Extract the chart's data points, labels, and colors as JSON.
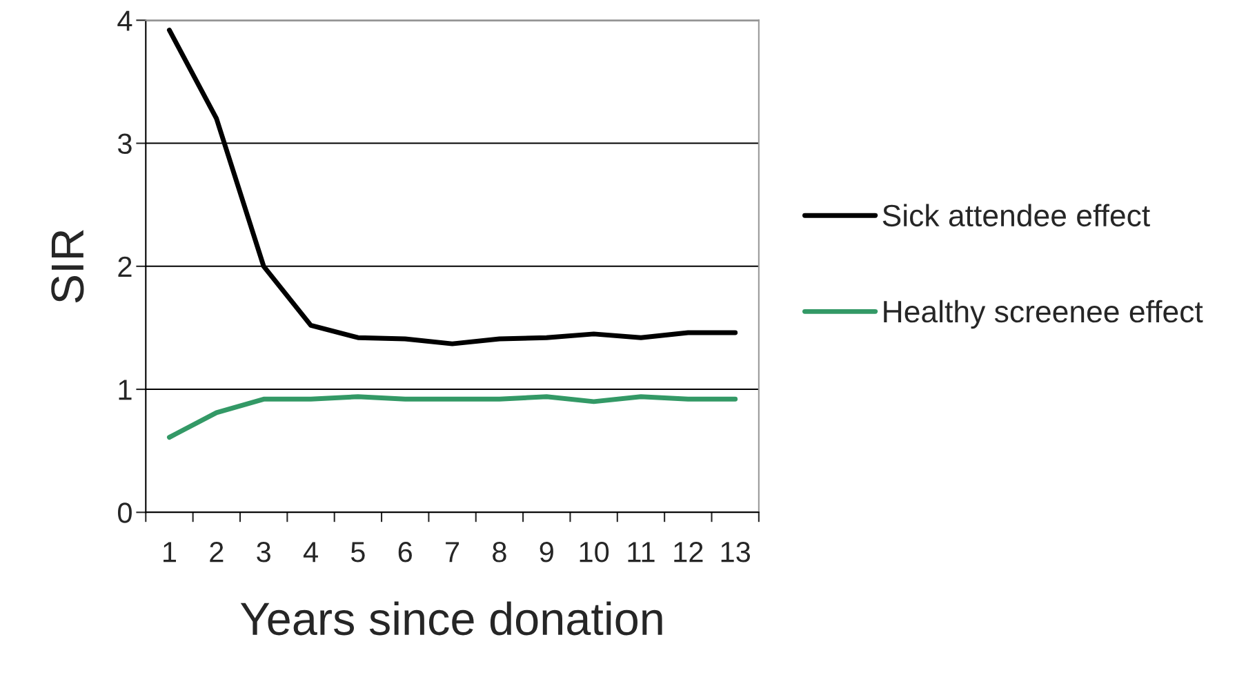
{
  "chart_data": {
    "type": "line",
    "xlabel": "Years since donation",
    "ylabel": "SIR",
    "categories": [
      "1",
      "2",
      "3",
      "4",
      "5",
      "6",
      "7",
      "8",
      "9",
      "10",
      "11",
      "12",
      "13"
    ],
    "series": [
      {
        "name": "Sick attendee effect",
        "color": "#000000",
        "values": [
          3.92,
          3.2,
          2.0,
          1.52,
          1.42,
          1.41,
          1.37,
          1.41,
          1.42,
          1.45,
          1.42,
          1.46,
          1.46
        ]
      },
      {
        "name": "Healthy screenee effect",
        "color": "#339966",
        "values": [
          0.61,
          0.81,
          0.92,
          0.92,
          0.94,
          0.92,
          0.92,
          0.92,
          0.94,
          0.9,
          0.94,
          0.92,
          0.92
        ]
      }
    ],
    "ylim": [
      0,
      4
    ],
    "yticks": [
      0,
      1,
      2,
      3,
      4
    ],
    "grid": "y",
    "legend": "right",
    "marker": "none",
    "line_style": "solid"
  }
}
